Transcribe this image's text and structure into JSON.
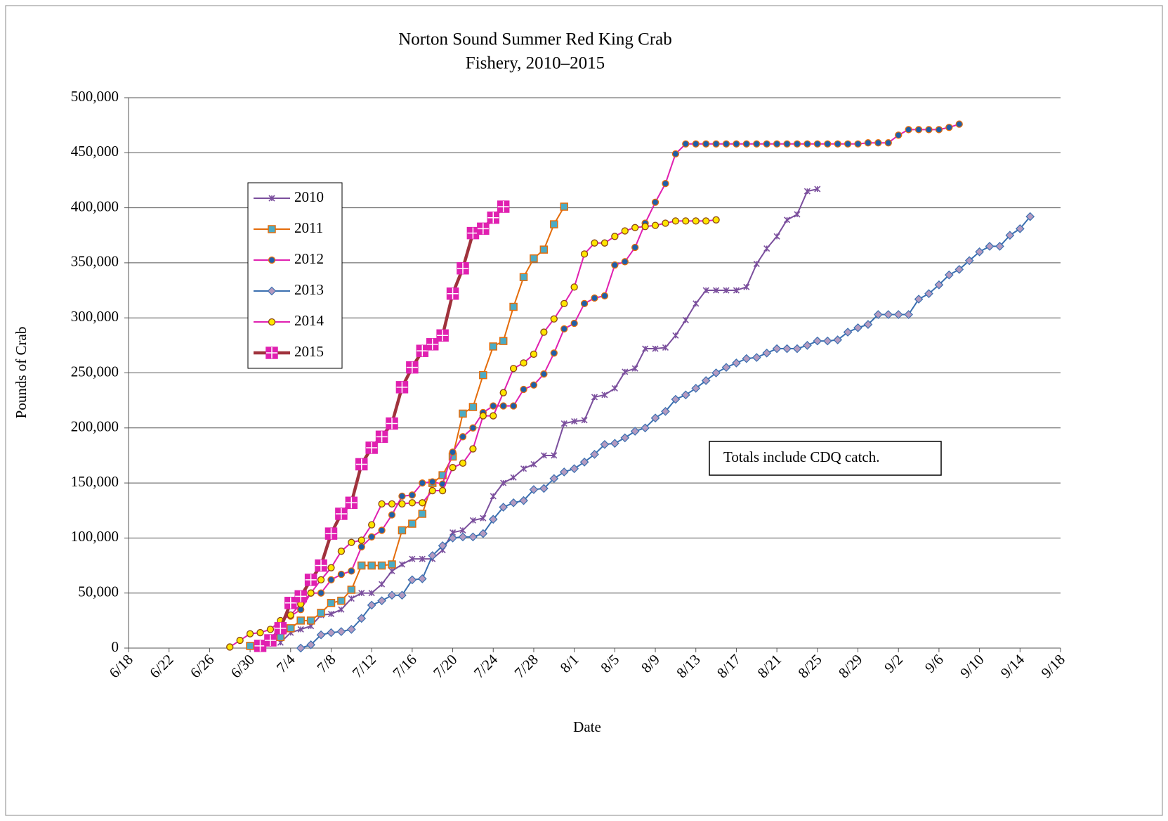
{
  "chart_data": {
    "type": "line",
    "title": [
      "Norton Sound Summer Red King Crab",
      "Fishery, 2010–2015"
    ],
    "x_label": "Date",
    "y_label": "Pounds of Crab",
    "annotation": "Totals include CDQ catch.",
    "grid": true,
    "legend": "upper left",
    "xlim": [
      "6/18",
      "9/18"
    ],
    "xticks": [
      "6/18",
      "6/22",
      "6/26",
      "6/30",
      "7/4",
      "7/8",
      "7/12",
      "7/16",
      "7/20",
      "7/24",
      "7/28",
      "8/1",
      "8/5",
      "8/9",
      "8/13",
      "8/17",
      "8/21",
      "8/25",
      "8/29",
      "9/2",
      "9/6",
      "9/10",
      "9/14",
      "9/18"
    ],
    "ylim": [
      0,
      500000
    ],
    "yticks": [
      0,
      {
        "value": 50000,
        "label": "50,000"
      },
      {
        "value": 100000,
        "label": "100,000"
      },
      {
        "value": 150000,
        "label": "150,000"
      },
      {
        "value": 200000,
        "label": "200,000"
      },
      {
        "value": 250000,
        "label": "250,000"
      },
      {
        "value": 300000,
        "label": "300,000"
      },
      {
        "value": 350000,
        "label": "350,000"
      },
      {
        "value": 400000,
        "label": "400,000"
      },
      {
        "value": 450000,
        "label": "450,000"
      },
      {
        "value": 500000,
        "label": "500,000"
      }
    ],
    "series": [
      {
        "name": "2010",
        "color": "#7b4f9d",
        "marker": "x",
        "marker_color": "#7b4f9d",
        "x": [
          "7/3",
          "7/4",
          "7/5",
          "7/6",
          "7/7",
          "7/8",
          "7/9",
          "7/10",
          "7/11",
          "7/12",
          "7/13",
          "7/14",
          "7/15",
          "7/16",
          "7/17",
          "7/18",
          "7/19",
          "7/20",
          "7/21",
          "7/22",
          "7/23",
          "7/24",
          "7/25",
          "7/26",
          "7/27",
          "7/28",
          "7/29",
          "7/30",
          "7/31",
          "8/1",
          "8/2",
          "8/3",
          "8/4",
          "8/5",
          "8/6",
          "8/7",
          "8/8",
          "8/9",
          "8/10",
          "8/11",
          "8/12",
          "8/13",
          "8/14",
          "8/15",
          "8/16",
          "8/17",
          "8/18",
          "8/19",
          "8/20",
          "8/21",
          "8/22",
          "8/23",
          "8/24",
          "8/25"
        ],
        "values": [
          5000,
          14000,
          17000,
          20000,
          30000,
          31000,
          35000,
          45000,
          50000,
          50000,
          58000,
          70000,
          76000,
          81000,
          81000,
          81000,
          89000,
          105000,
          107000,
          116000,
          118000,
          138000,
          150000,
          155000,
          163000,
          167000,
          175000,
          175000,
          204000,
          206000,
          207000,
          228000,
          230000,
          236000,
          251000,
          254000,
          272000,
          272000,
          273000,
          284000,
          298000,
          313000,
          325000,
          325000,
          325000,
          325000,
          328000,
          349000,
          363000,
          374000,
          389000,
          394000,
          415000,
          417000
        ]
      },
      {
        "name": "2011",
        "color": "#e46c0a",
        "marker": "square",
        "marker_color": "#4bacc6",
        "x": [
          "6/30",
          "7/1",
          "7/2",
          "7/3",
          "7/4",
          "7/5",
          "7/6",
          "7/7",
          "7/8",
          "7/9",
          "7/10",
          "7/11",
          "7/12",
          "7/13",
          "7/14",
          "7/15",
          "7/16",
          "7/17",
          "7/18",
          "7/19",
          "7/20",
          "7/21",
          "7/22",
          "7/23",
          "7/24",
          "7/25",
          "7/26",
          "7/27",
          "7/28",
          "7/29",
          "7/30",
          "7/31"
        ],
        "values": [
          2000,
          3000,
          6000,
          10000,
          18000,
          25000,
          25000,
          32000,
          41000,
          43000,
          53000,
          75000,
          75000,
          75000,
          76000,
          107000,
          113000,
          122000,
          150000,
          157000,
          174000,
          213000,
          219000,
          248000,
          274000,
          279000,
          310000,
          337000,
          354000,
          362000,
          385000,
          401000
        ]
      },
      {
        "name": "2012",
        "color": "#e020b0",
        "marker": "circle",
        "marker_color": "#1f5fa8",
        "marker_edge": "#e46c0a",
        "x": [
          "7/4",
          "7/5",
          "7/6",
          "7/7",
          "7/8",
          "7/9",
          "7/10",
          "7/11",
          "7/12",
          "7/13",
          "7/14",
          "7/15",
          "7/16",
          "7/17",
          "7/18",
          "7/19",
          "7/20",
          "7/21",
          "7/22",
          "7/23",
          "7/24",
          "7/25",
          "7/26",
          "7/27",
          "7/28",
          "7/29",
          "7/30",
          "7/31",
          "8/1",
          "8/2",
          "8/3",
          "8/4",
          "8/5",
          "8/6",
          "8/7",
          "8/8",
          "8/9",
          "8/10",
          "8/11",
          "8/12",
          "8/13",
          "8/14",
          "8/15",
          "8/16",
          "8/17",
          "8/18",
          "8/19",
          "8/20",
          "8/21",
          "8/22",
          "8/23",
          "8/24",
          "8/25",
          "8/26",
          "8/27",
          "8/28",
          "8/29",
          "8/30",
          "8/31",
          "9/1",
          "9/2",
          "9/3",
          "9/4",
          "9/5",
          "9/6",
          "9/7",
          "9/8"
        ],
        "values": [
          29000,
          35000,
          50000,
          50000,
          62000,
          67000,
          70000,
          92000,
          101000,
          107000,
          121000,
          138000,
          139000,
          150000,
          151000,
          149000,
          178000,
          192000,
          200000,
          214000,
          220000,
          220000,
          220000,
          235000,
          239000,
          249000,
          268000,
          290000,
          295000,
          313000,
          318000,
          320000,
          348000,
          351000,
          364000,
          386000,
          405000,
          422000,
          449000,
          458000,
          458000,
          458000,
          458000,
          458000,
          458000,
          458000,
          458000,
          458000,
          458000,
          458000,
          458000,
          458000,
          458000,
          458000,
          458000,
          458000,
          458000,
          459000,
          459000,
          459000,
          466000,
          471000,
          471000,
          471000,
          471000,
          473000,
          476000
        ]
      },
      {
        "name": "2013",
        "color": "#3a6fb0",
        "marker": "diamond",
        "marker_color": "#b49ac0",
        "marker_edge": "#3a6fb0",
        "x": [
          "7/5",
          "7/6",
          "7/7",
          "7/8",
          "7/9",
          "7/10",
          "7/11",
          "7/12",
          "7/13",
          "7/14",
          "7/15",
          "7/16",
          "7/17",
          "7/18",
          "7/19",
          "7/20",
          "7/21",
          "7/22",
          "7/23",
          "7/24",
          "7/25",
          "7/26",
          "7/27",
          "7/28",
          "7/29",
          "7/30",
          "7/31",
          "8/1",
          "8/2",
          "8/3",
          "8/4",
          "8/5",
          "8/6",
          "8/7",
          "8/8",
          "8/9",
          "8/10",
          "8/11",
          "8/12",
          "8/13",
          "8/14",
          "8/15",
          "8/16",
          "8/17",
          "8/18",
          "8/19",
          "8/20",
          "8/21",
          "8/22",
          "8/23",
          "8/24",
          "8/25",
          "8/26",
          "8/27",
          "8/28",
          "8/29",
          "8/30",
          "8/31",
          "9/1",
          "9/2",
          "9/3",
          "9/4",
          "9/5",
          "9/6",
          "9/7",
          "9/8",
          "9/9",
          "9/10",
          "9/11",
          "9/12",
          "9/13",
          "9/14",
          "9/15"
        ],
        "values": [
          0,
          3000,
          12000,
          14000,
          15000,
          17000,
          27000,
          39000,
          43000,
          48000,
          48000,
          62000,
          63000,
          84000,
          93000,
          100000,
          101000,
          101000,
          104000,
          117000,
          128000,
          132000,
          134000,
          144000,
          145000,
          154000,
          160000,
          163000,
          169000,
          176000,
          185000,
          186000,
          191000,
          197000,
          200000,
          209000,
          215000,
          226000,
          230000,
          236000,
          243000,
          250000,
          255000,
          259000,
          263000,
          264000,
          268000,
          272000,
          272000,
          272000,
          275000,
          279000,
          279000,
          280000,
          287000,
          291000,
          294000,
          303000,
          303000,
          303000,
          303000,
          317000,
          322000,
          330000,
          339000,
          344000,
          352000,
          360000,
          365000,
          365000,
          375000,
          381000,
          392000
        ]
      },
      {
        "name": "2014",
        "color": "#e020b0",
        "marker": "circle",
        "marker_color": "#ffe600",
        "marker_edge": "#8b4513",
        "x": [
          "6/28",
          "6/29",
          "6/30",
          "7/1",
          "7/2",
          "7/3",
          "7/4",
          "7/5",
          "7/6",
          "7/7",
          "7/8",
          "7/9",
          "7/10",
          "7/11",
          "7/12",
          "7/13",
          "7/14",
          "7/15",
          "7/16",
          "7/17",
          "7/18",
          "7/19",
          "7/20",
          "7/21",
          "7/22",
          "7/23",
          "7/24",
          "7/25",
          "7/26",
          "7/27",
          "7/28",
          "7/29",
          "7/30",
          "7/31",
          "8/1",
          "8/2",
          "8/3",
          "8/4",
          "8/5",
          "8/6",
          "8/7",
          "8/8",
          "8/9",
          "8/10",
          "8/11",
          "8/12",
          "8/13",
          "8/14",
          "8/15"
        ],
        "values": [
          1000,
          7000,
          13000,
          14000,
          17000,
          25000,
          30000,
          40000,
          50000,
          62000,
          73000,
          88000,
          96000,
          98000,
          112000,
          131000,
          131000,
          131000,
          132000,
          132000,
          143000,
          143000,
          164000,
          168000,
          181000,
          211000,
          211000,
          232000,
          254000,
          259000,
          267000,
          287000,
          299000,
          313000,
          328000,
          358000,
          368000,
          368000,
          374000,
          379000,
          382000,
          383000,
          384000,
          386000,
          388000,
          388000,
          388000,
          388000,
          389000
        ]
      },
      {
        "name": "2015",
        "color": "#a0323c",
        "marker": "square",
        "marker_color": "#e020b0",
        "style": "bold",
        "x": [
          "7/1",
          "7/2",
          "7/3",
          "7/4",
          "7/5",
          "7/6",
          "7/7",
          "7/8",
          "7/9",
          "7/10",
          "7/11",
          "7/12",
          "7/13",
          "7/14",
          "7/15",
          "7/16",
          "7/17",
          "7/18",
          "7/19",
          "7/20",
          "7/21",
          "7/22",
          "7/23",
          "7/24",
          "7/25"
        ],
        "values": [
          2000,
          7000,
          18000,
          41000,
          47000,
          62000,
          75000,
          104000,
          122000,
          132000,
          167000,
          182000,
          192000,
          204000,
          237000,
          255000,
          270000,
          276000,
          284000,
          322000,
          345000,
          377000,
          381000,
          391000,
          401000
        ]
      }
    ]
  }
}
